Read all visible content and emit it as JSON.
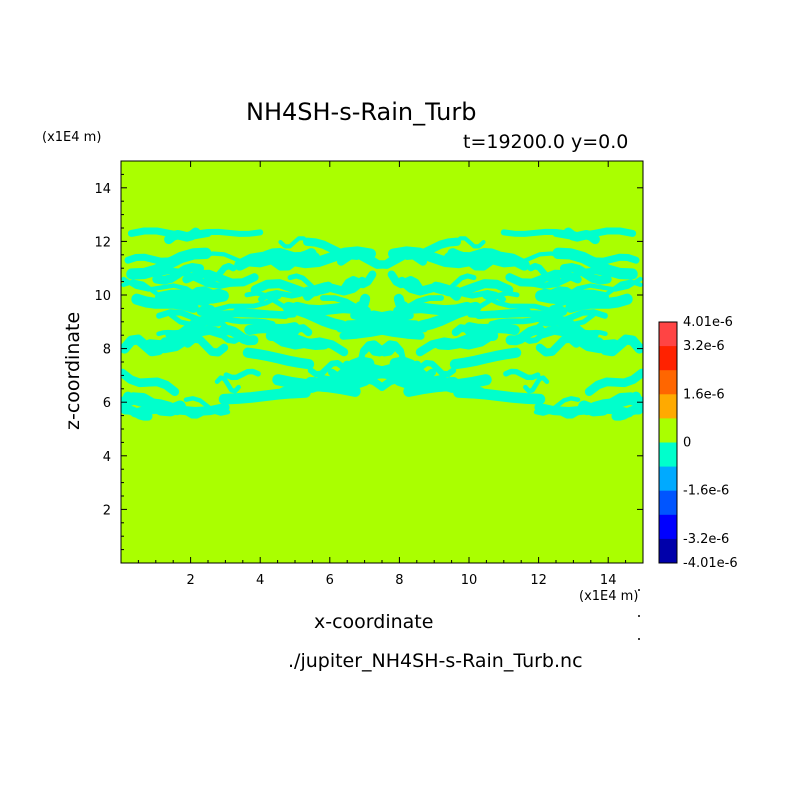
{
  "chart_data": {
    "type": "heatmap",
    "title": "NH4SH-s-Rain_Turb",
    "subtitle": "t=19200.0 y=0.0",
    "xlabel": "x-coordinate",
    "ylabel": "z-coordinate",
    "x_unit": "(x1E4 m)",
    "y_unit": "(x1E4 m)",
    "xlim": [
      0,
      15
    ],
    "ylim": [
      0,
      15
    ],
    "x_ticks": [
      2,
      4,
      6,
      8,
      10,
      12,
      14
    ],
    "y_ticks": [
      2,
      4,
      6,
      8,
      10,
      12,
      14
    ],
    "source_file": "./jupiter_NH4SH-s-Rain_Turb.nc",
    "background_color": "#aaff00",
    "dominant_value": 0,
    "negative_region": {
      "color": "#00ffcc",
      "value_range": [
        -8e-07,
        0
      ],
      "z_range": [
        5.3,
        12.5
      ],
      "pattern": "filamentary turbulent streaks, roughly mirror-symmetric about x=7.5"
    },
    "colorbar": {
      "labels": [
        "4.01e-6",
        "3.2e-6",
        "1.6e-6",
        "0",
        "-1.6e-6",
        "-3.2e-6",
        "-4.01e-6"
      ],
      "levels": [
        4.01e-06,
        3.2e-06,
        2.4e-06,
        1.6e-06,
        8e-07,
        0,
        -8e-07,
        -1.6e-06,
        -2.4e-06,
        -3.2e-06,
        -4.01e-06
      ],
      "colors": [
        "#ff4444",
        "#ff2200",
        "#ff6600",
        "#ffaa00",
        "#aaff00",
        "#00ffcc",
        "#00aaff",
        "#0055ff",
        "#0000ff",
        "#0000aa"
      ]
    }
  }
}
